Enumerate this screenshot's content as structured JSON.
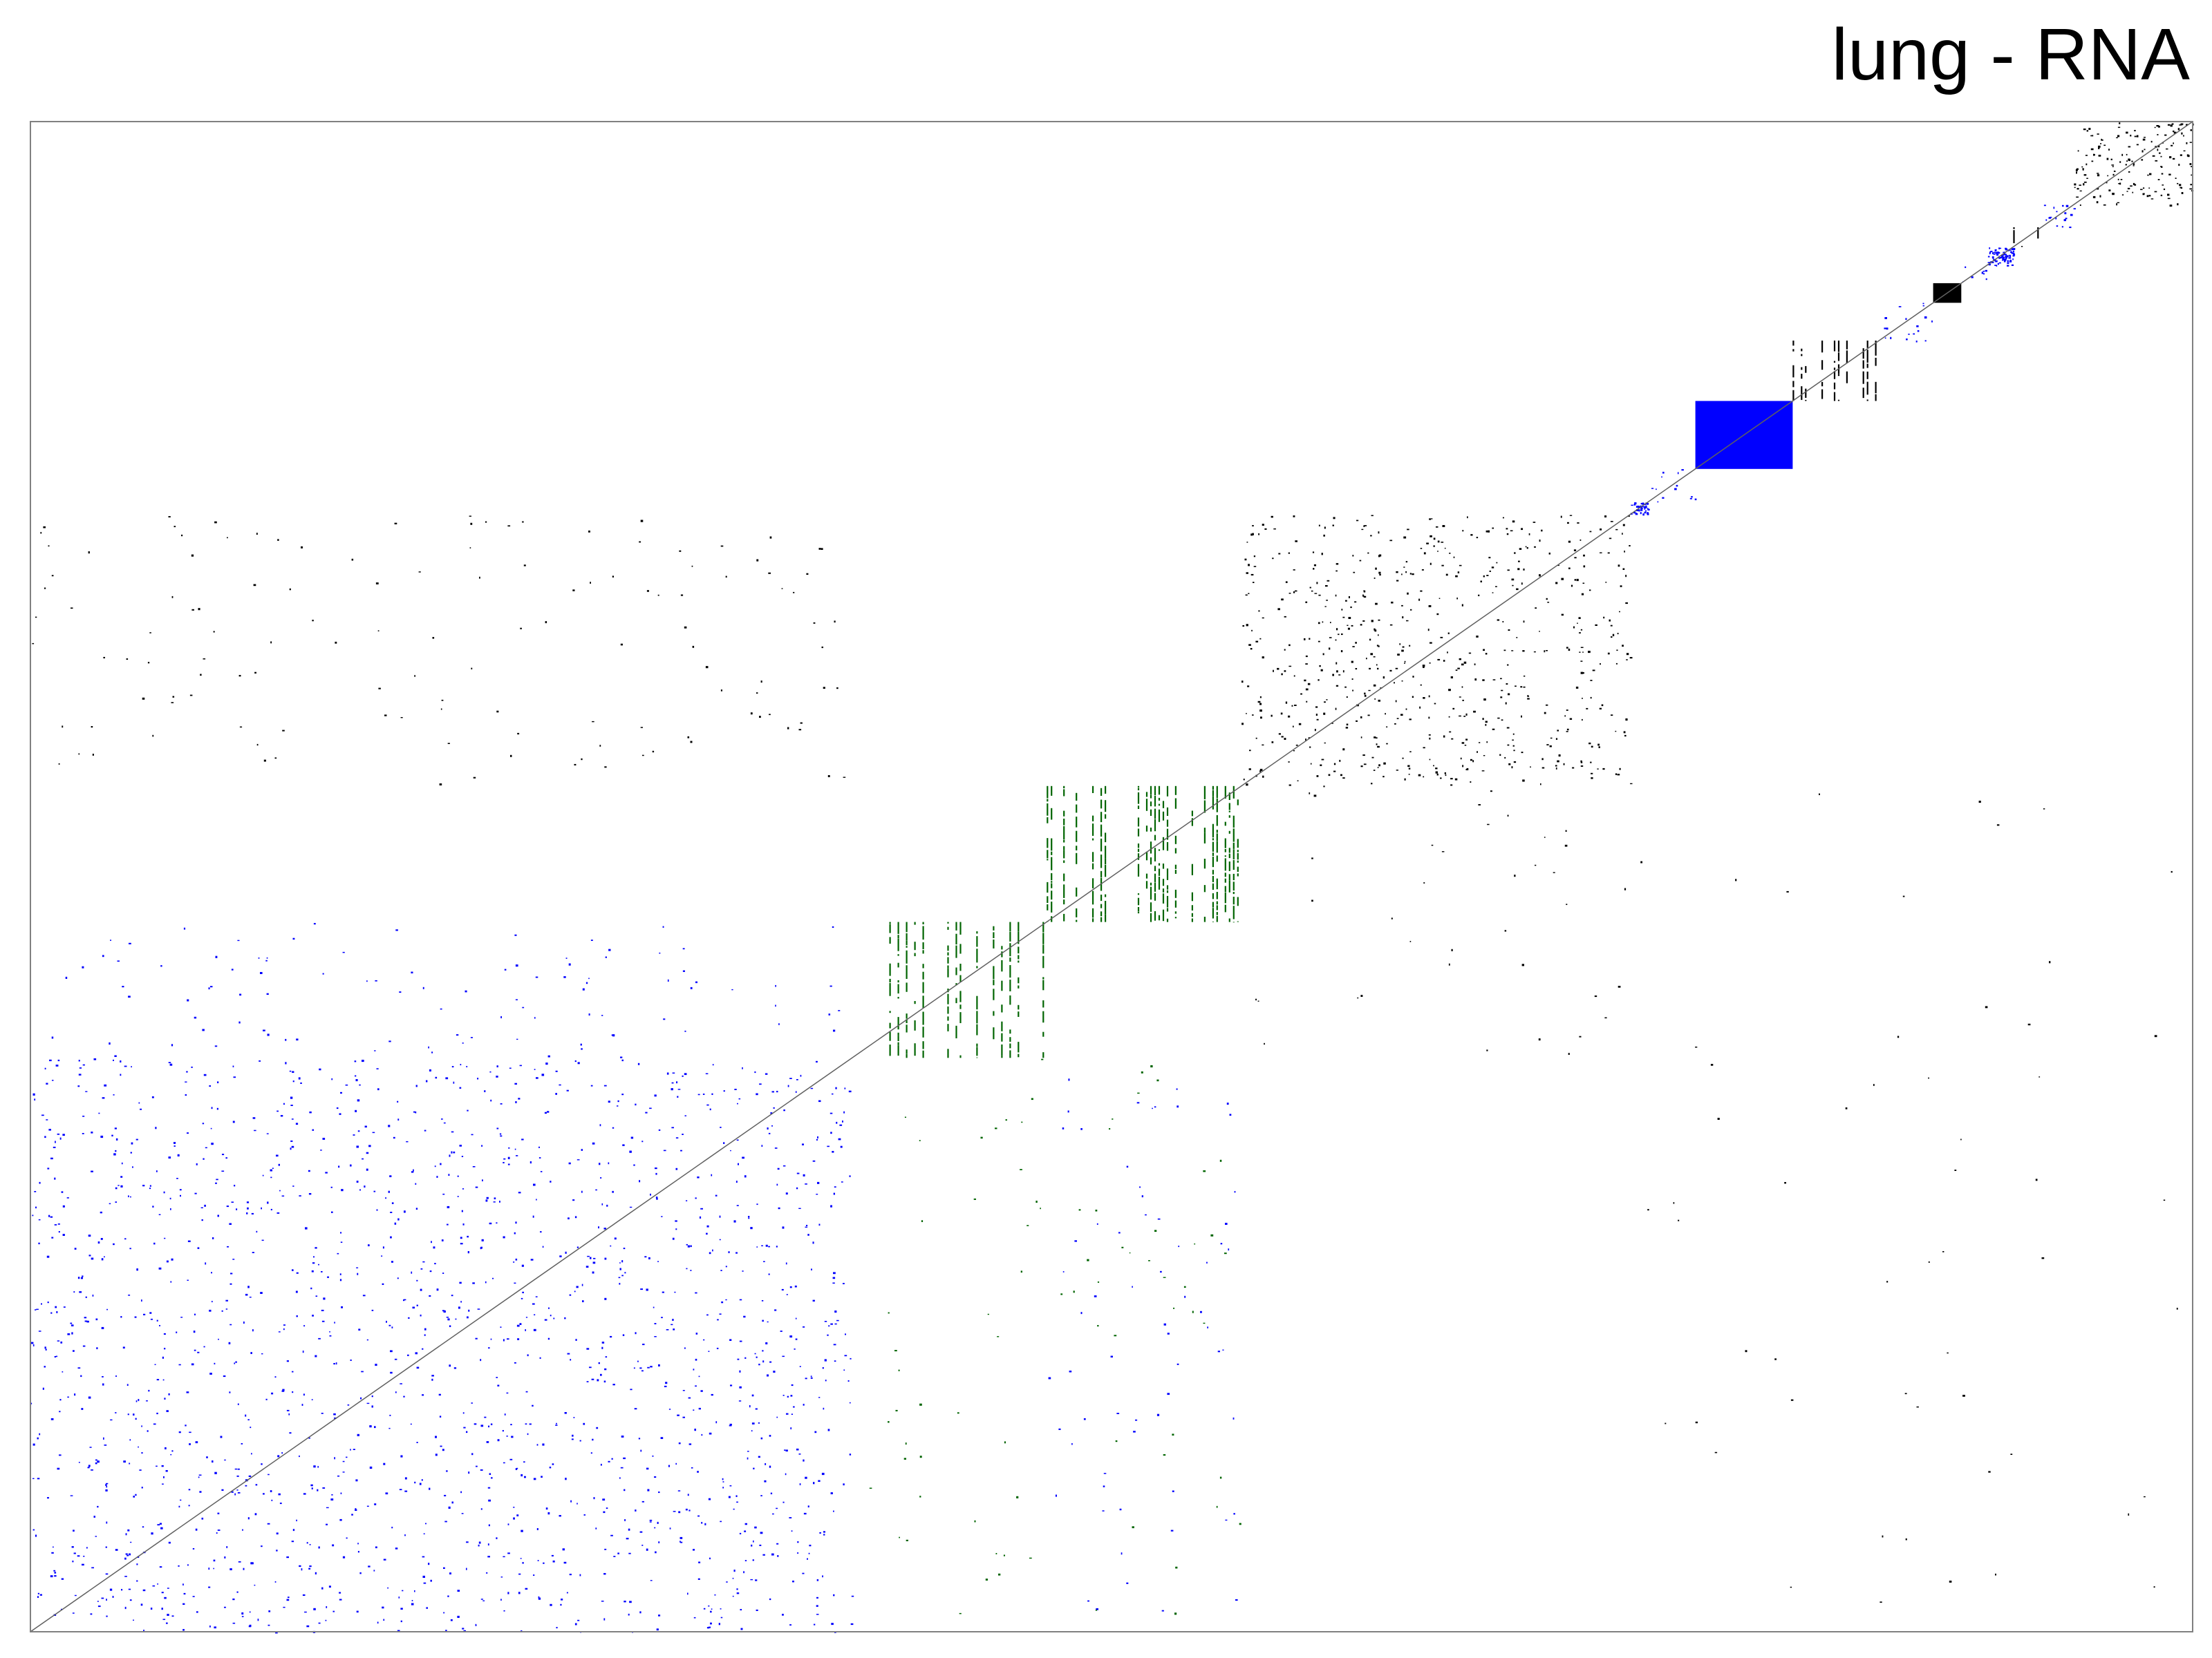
{
  "chart_data": {
    "type": "heatmap",
    "title": "lung - RNA",
    "xlabel": "",
    "ylabel": "",
    "grid": false,
    "legend": "none",
    "axis_ticks": false,
    "x_range": [
      0,
      1
    ],
    "y_range": [
      0,
      1
    ],
    "colors": {
      "blue": "#0000ff",
      "black": "#000000",
      "green": "#006400",
      "frame": "#808080",
      "background": "#ffffff"
    },
    "diagonal_blocks": [
      {
        "name": "block-1",
        "start": 0.0,
        "end": 0.38,
        "color": "blue",
        "style": "sparse",
        "density": 0.06
      },
      {
        "name": "block-2",
        "start": 0.38,
        "end": 0.47,
        "color": "green",
        "style": "stripes",
        "density": 0.3
      },
      {
        "name": "block-3",
        "start": 0.47,
        "end": 0.56,
        "color": "green",
        "style": "stripes",
        "density": 0.45
      },
      {
        "name": "block-4",
        "start": 0.56,
        "end": 0.74,
        "color": "black",
        "style": "sparse",
        "density": 0.1
      },
      {
        "name": "block-5",
        "start": 0.74,
        "end": 0.748,
        "color": "blue",
        "style": "dense",
        "density": 0.8
      },
      {
        "name": "block-6",
        "start": 0.748,
        "end": 0.77,
        "color": "blue",
        "style": "sparse",
        "density": 0.15
      },
      {
        "name": "block-7",
        "start": 0.77,
        "end": 0.815,
        "color": "blue",
        "style": "solid",
        "density": 1.0
      },
      {
        "name": "block-8",
        "start": 0.815,
        "end": 0.855,
        "color": "black",
        "style": "stripes",
        "density": 0.5
      },
      {
        "name": "block-9",
        "start": 0.855,
        "end": 0.88,
        "color": "blue",
        "style": "sparse",
        "density": 0.15
      },
      {
        "name": "block-10",
        "start": 0.88,
        "end": 0.893,
        "color": "black",
        "style": "solid",
        "density": 1.0
      },
      {
        "name": "block-11",
        "start": 0.893,
        "end": 0.905,
        "color": "blue",
        "style": "sparse",
        "density": 0.3
      },
      {
        "name": "block-12",
        "start": 0.905,
        "end": 0.917,
        "color": "blue",
        "style": "dense",
        "density": 0.7
      },
      {
        "name": "block-13",
        "start": 0.917,
        "end": 0.93,
        "color": "black",
        "style": "stripes",
        "density": 0.6
      },
      {
        "name": "block-14",
        "start": 0.93,
        "end": 0.945,
        "color": "blue",
        "style": "sparse",
        "density": 0.4
      },
      {
        "name": "block-15",
        "start": 0.945,
        "end": 1.0,
        "color": "black",
        "style": "sparse",
        "density": 0.3
      }
    ],
    "off_diagonal_regions": [
      {
        "x": [
          0.0,
          0.38
        ],
        "y": [
          0.38,
          0.47
        ],
        "color": "blue",
        "style": "sparse",
        "density": 0.015
      },
      {
        "x": [
          0.0,
          0.38
        ],
        "y": [
          0.56,
          0.74
        ],
        "color": "black",
        "style": "sparse",
        "density": 0.01
      },
      {
        "x": [
          0.47,
          0.56
        ],
        "y": [
          0.0,
          0.38
        ],
        "color": "blue",
        "style": "sparse",
        "density": 0.01
      },
      {
        "x": [
          0.56,
          0.74
        ],
        "y": [
          0.38,
          0.56
        ],
        "color": "black",
        "style": "sparse",
        "density": 0.006
      },
      {
        "x": [
          0.38,
          0.56
        ],
        "y": [
          0.0,
          0.38
        ],
        "color": "green",
        "style": "sparse",
        "density": 0.006
      },
      {
        "x": [
          0.74,
          1.0
        ],
        "y": [
          0.0,
          0.56
        ],
        "color": "black",
        "style": "sparse",
        "density": 0.002
      }
    ]
  }
}
